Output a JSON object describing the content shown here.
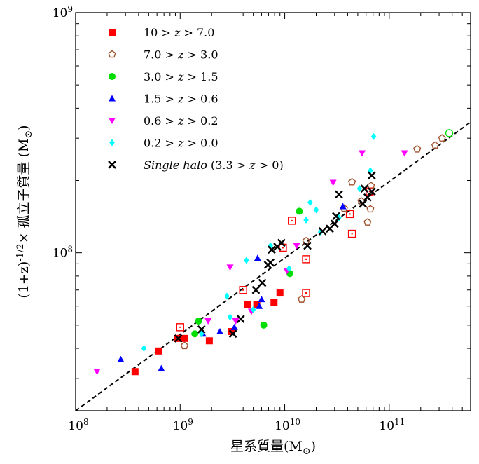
{
  "chart_data": {
    "type": "scatter",
    "xlabel": "星系質量(M⊙)",
    "ylabel": "(1+z)-1/2× 孤立子質量 (M⊙)",
    "xscale": "log",
    "yscale": "log",
    "xlim": [
      100000000.0,
      600000000000.0
    ],
    "ylim": [
      22000000.0,
      1000000000.0
    ],
    "x_ticks": [
      {
        "value": 100000000.0,
        "base": "10",
        "exp": "8"
      },
      {
        "value": 1000000000.0,
        "base": "10",
        "exp": "9"
      },
      {
        "value": 10000000000.0,
        "base": "10",
        "exp": "10"
      },
      {
        "value": 100000000000.0,
        "base": "10",
        "exp": "11"
      }
    ],
    "y_ticks": [
      {
        "value": 100000000.0,
        "base": "10",
        "exp": "8"
      },
      {
        "value": 1000000000.0,
        "base": "10",
        "exp": "9"
      }
    ],
    "grid": false,
    "legend_position": "top-left",
    "fit_line": {
      "style": "dashed",
      "color": "#000000",
      "points": [
        [
          100000000.0,
          22000000.0
        ],
        [
          600000000000.0,
          350000000.0
        ]
      ]
    },
    "series": [
      {
        "name": "10 > z > 7.0",
        "label_parts": [
          "10 > ",
          "z",
          " > 7.0"
        ],
        "marker": "square",
        "color": "#ff0000",
        "filled": [
          [
            370000000.0,
            32000000.0
          ],
          [
            620000000.0,
            39000000.0
          ],
          [
            950000000.0,
            44000000.0
          ],
          [
            1100000000.0,
            44000000.0
          ],
          [
            1900000000.0,
            43000000.0
          ],
          [
            3100000000.0,
            47000000.0
          ],
          [
            4400000000.0,
            61000000.0
          ],
          [
            5400000000.0,
            61000000.0
          ],
          [
            7900000000.0,
            62000000.0
          ],
          [
            9000000000.0,
            68000000.0
          ]
        ],
        "open": [
          [
            1000000000.0,
            49000000.0
          ],
          [
            4000000000.0,
            70000000.0
          ],
          [
            9600000000.0,
            105000000.0
          ],
          [
            16000000000.0,
            94000000.0
          ],
          [
            16000000000.0,
            68000000.0
          ],
          [
            11700000000.0,
            136000000.0
          ],
          [
            42000000000.0,
            145000000.0
          ],
          [
            44000000000.0,
            120000000.0
          ],
          [
            65000000000.0,
            180000000.0
          ]
        ]
      },
      {
        "name": "7.0 > z > 3.0",
        "label_parts": [
          "7.0 > ",
          "z",
          " > 3.0"
        ],
        "marker": "pentagon",
        "color": "#a0522d",
        "filled": [],
        "open": [
          [
            1100000000.0,
            41000000.0
          ],
          [
            14500000000.0,
            64000000.0
          ],
          [
            16000000000.0,
            112000000.0
          ],
          [
            37000000000.0,
            153000000.0
          ],
          [
            44000000000.0,
            197000000.0
          ],
          [
            54000000000.0,
            164000000.0
          ],
          [
            62000000000.0,
            134000000.0
          ],
          [
            66000000000.0,
            152000000.0
          ],
          [
            67000000000.0,
            190000000.0
          ],
          [
            185000000000.0,
            270000000.0
          ],
          [
            275000000000.0,
            280000000.0
          ],
          [
            320000000000.0,
            300000000.0
          ]
        ]
      },
      {
        "name": "3.0 > z > 1.5",
        "label_parts": [
          "3.0 > ",
          "z",
          " > 1.5"
        ],
        "marker": "circle",
        "color": "#00dd00",
        "filled": [
          [
            1380000000.0,
            46000000.0
          ],
          [
            1500000000.0,
            52000000.0
          ],
          [
            6300000000.0,
            50000000.0
          ],
          [
            11200000000.0,
            82000000.0
          ],
          [
            13800000000.0,
            149000000.0
          ]
        ],
        "open": [
          [
            375000000000.0,
            315000000.0
          ]
        ]
      },
      {
        "name": "1.5 > z > 0.6",
        "label_parts": [
          "1.5 > ",
          "z",
          " > 0.6"
        ],
        "marker": "triangle-up",
        "color": "#0000ff",
        "filled": [
          [
            270000000.0,
            36000000.0
          ],
          [
            660000000.0,
            33000000.0
          ],
          [
            1650000000.0,
            46000000.0
          ],
          [
            2400000000.0,
            47000000.0
          ],
          [
            3300000000.0,
            49000000.0
          ],
          [
            5700000000.0,
            60000000.0
          ],
          [
            6000000000.0,
            64000000.0
          ],
          [
            5500000000.0,
            95000000.0
          ],
          [
            36000000000.0,
            156000000.0
          ]
        ],
        "open": []
      },
      {
        "name": "0.6 > z > 0.2",
        "label_parts": [
          "0.6 > ",
          "z",
          " > 0.2"
        ],
        "marker": "triangle-down",
        "color": "#ff00ff",
        "filled": [
          [
            160000000.0,
            32000000.0
          ],
          [
            1850000000.0,
            52000000.0
          ],
          [
            3000000000.0,
            87000000.0
          ],
          [
            3400000000.0,
            52000000.0
          ],
          [
            4800000000.0,
            57000000.0
          ],
          [
            10500000000.0,
            84000000.0
          ],
          [
            13000000000.0,
            107000000.0
          ],
          [
            29000000000.0,
            196000000.0
          ],
          [
            55000000000.0,
            260000000.0
          ],
          [
            140000000000.0,
            260000000.0
          ]
        ],
        "open": []
      },
      {
        "name": "0.2 > z > 0.0",
        "label_parts": [
          "0.2 > ",
          "z",
          " > 0.0"
        ],
        "marker": "diamond",
        "color": "#00ffff",
        "filled": [
          [
            450000000.0,
            40000000.0
          ],
          [
            1600000000.0,
            46000000.0
          ],
          [
            2800000000.0,
            66000000.0
          ],
          [
            3000000000.0,
            54000000.0
          ],
          [
            4300000000.0,
            93000000.0
          ],
          [
            5000000000.0,
            58000000.0
          ],
          [
            7300000000.0,
            107000000.0
          ],
          [
            11000000000.0,
            86000000.0
          ],
          [
            16000000000.0,
            137000000.0
          ],
          [
            17500000000.0,
            162000000.0
          ],
          [
            20000000000.0,
            151000000.0
          ],
          [
            22000000000.0,
            122000000.0
          ],
          [
            33000000000.0,
            140000000.0
          ],
          [
            52000000000.0,
            185000000.0
          ],
          [
            66000000000.0,
            220000000.0
          ],
          [
            71000000000.0,
            305000000.0
          ]
        ],
        "open": []
      },
      {
        "name": "Single halo (3.3 > z > 0)",
        "label_parts": [
          "Single halo",
          " (3.3 > ",
          "z",
          " > 0)"
        ],
        "marker": "x",
        "color": "#000000",
        "filled": [
          [
            960000000.0,
            44000000.0
          ],
          [
            1600000000.0,
            48000000.0
          ],
          [
            3200000000.0,
            46000000.0
          ],
          [
            3800000000.0,
            53000000.0
          ],
          [
            5300000000.0,
            70000000.0
          ],
          [
            6100000000.0,
            75000000.0
          ],
          [
            6900000000.0,
            89000000.0
          ],
          [
            7300000000.0,
            91000000.0
          ],
          [
            7500000000.0,
            103000000.0
          ],
          [
            8500000000.0,
            106000000.0
          ],
          [
            9300000000.0,
            110000000.0
          ],
          [
            16500000000.0,
            107000000.0
          ],
          [
            23000000000.0,
            123000000.0
          ],
          [
            27000000000.0,
            126000000.0
          ],
          [
            30000000000.0,
            132000000.0
          ],
          [
            31000000000.0,
            142000000.0
          ],
          [
            33000000000.0,
            175000000.0
          ],
          [
            56000000000.0,
            160000000.0
          ],
          [
            58000000000.0,
            185000000.0
          ],
          [
            62000000000.0,
            170000000.0
          ],
          [
            68000000000.0,
            180000000.0
          ],
          [
            68000000000.0,
            210000000.0
          ]
        ],
        "open": []
      }
    ]
  }
}
